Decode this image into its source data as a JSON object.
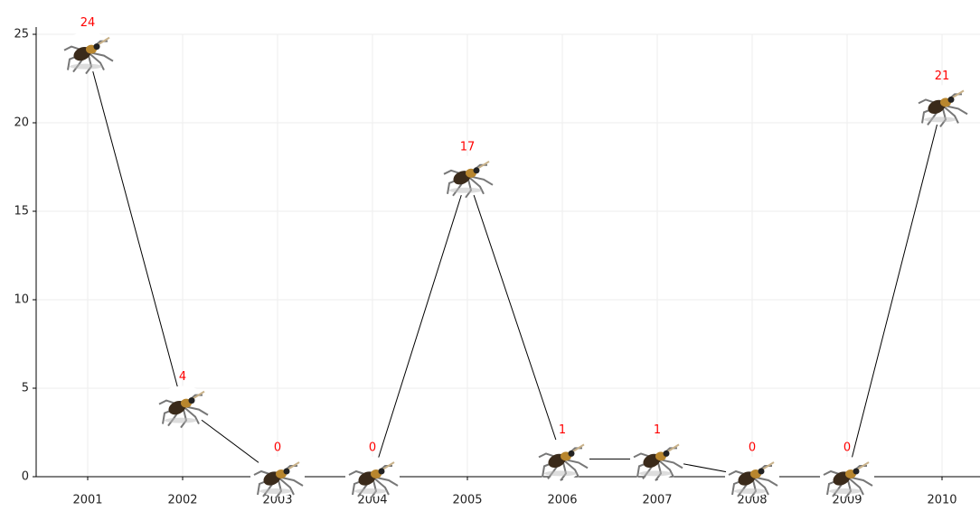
{
  "chart_data": {
    "type": "line",
    "categories": [
      "2001",
      "2002",
      "2003",
      "2004",
      "2005",
      "2006",
      "2007",
      "2008",
      "2009",
      "2010"
    ],
    "values": [
      24,
      4,
      0,
      0,
      17,
      1,
      1,
      0,
      0,
      21
    ],
    "color": "#000000",
    "label_color": "#ff0000",
    "ylim": [
      0,
      25
    ],
    "yticks": [
      0,
      5,
      10,
      15,
      20,
      25
    ],
    "grid": true
  }
}
